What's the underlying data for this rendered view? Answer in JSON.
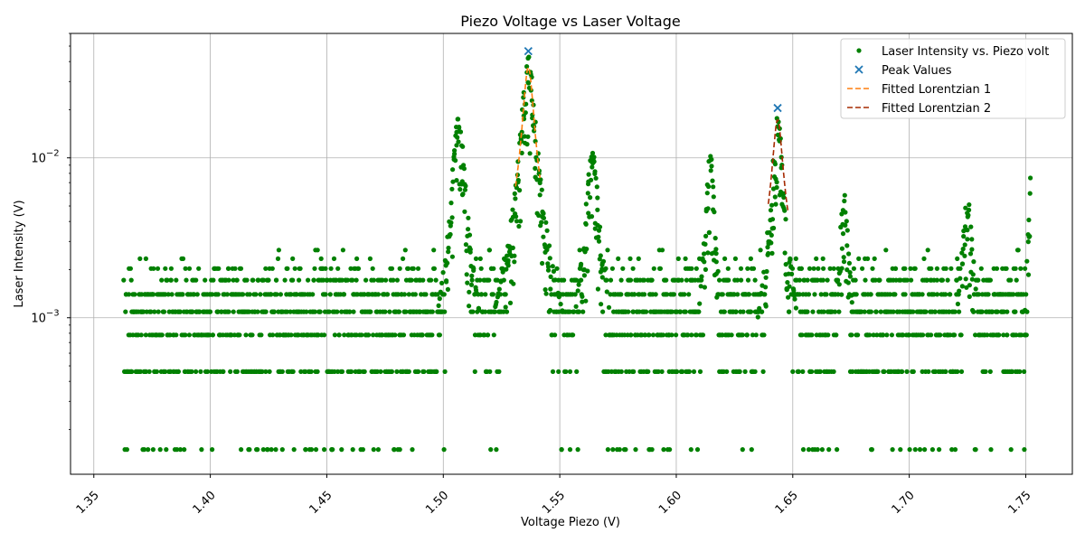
{
  "chart_data": {
    "type": "scatter",
    "title": "Piezo Voltage vs Laser Voltage",
    "xlabel": "Voltage Piezo (V)",
    "ylabel": "Laser Intensity (V)",
    "xlim": [
      1.34,
      1.77
    ],
    "ylim": [
      0.000105,
      0.06
    ],
    "yscale": "log",
    "grid": true,
    "legend_position": "top-right",
    "x_ticks": [
      {
        "value": 1.35,
        "label": "1.35"
      },
      {
        "value": 1.4,
        "label": "1.40"
      },
      {
        "value": 1.45,
        "label": "1.45"
      },
      {
        "value": 1.5,
        "label": "1.50"
      },
      {
        "value": 1.55,
        "label": "1.55"
      },
      {
        "value": 1.6,
        "label": "1.60"
      },
      {
        "value": 1.65,
        "label": "1.65"
      },
      {
        "value": 1.7,
        "label": "1.70"
      },
      {
        "value": 1.75,
        "label": "1.75"
      }
    ],
    "y_ticks": [
      {
        "value": 0.01,
        "label_base": "10",
        "label_exp": "−2"
      },
      {
        "value": 0.001,
        "label_base": "10",
        "label_exp": "−3"
      }
    ],
    "series": [
      {
        "name": "Laser Intensity vs. Piezo volt",
        "kind": "scatter",
        "color": "#008000",
        "x_range": [
          1.363,
          1.752
        ],
        "levels": [
          0.00015,
          0.00046,
          0.00078,
          0.00109,
          0.0014,
          0.00172,
          0.00203,
          0.00234,
          0.00265
        ],
        "peaks": [
          {
            "x": 1.5065,
            "height": 0.019,
            "width": 0.0022
          },
          {
            "x": 1.5365,
            "height": 0.042,
            "width": 0.0024
          },
          {
            "x": 1.564,
            "height": 0.0105,
            "width": 0.0025
          },
          {
            "x": 1.6145,
            "height": 0.011,
            "width": 0.0016
          },
          {
            "x": 1.6435,
            "height": 0.019,
            "width": 0.002
          },
          {
            "x": 1.672,
            "height": 0.0058,
            "width": 0.0018
          },
          {
            "x": 1.725,
            "height": 0.0055,
            "width": 0.0022
          },
          {
            "x": 1.752,
            "height": 0.0072,
            "width": 0.001
          }
        ]
      },
      {
        "name": "Peak Values",
        "kind": "marker-x",
        "color": "#1f77b4",
        "points": [
          {
            "x": 1.5365,
            "y": 0.0465
          },
          {
            "x": 1.6435,
            "y": 0.0205
          }
        ]
      },
      {
        "name": "Fitted Lorentzian 1",
        "kind": "dashed-line",
        "color": "#ff7f0e",
        "center": 1.5365,
        "amplitude": 0.035,
        "gamma": 0.0022,
        "x_range": [
          1.531,
          1.5415
        ]
      },
      {
        "name": "Fitted Lorentzian 2",
        "kind": "dashed-line",
        "color": "#a52a00",
        "center": 1.6435,
        "amplitude": 0.0155,
        "gamma": 0.0021,
        "x_range": [
          1.6395,
          1.648
        ]
      }
    ]
  }
}
